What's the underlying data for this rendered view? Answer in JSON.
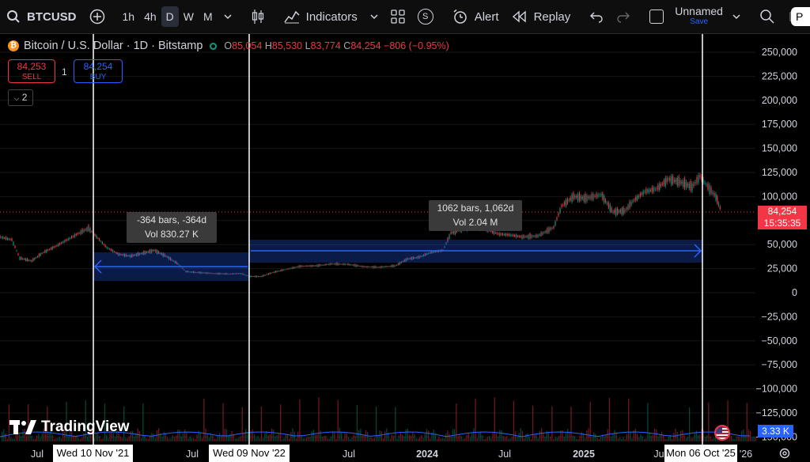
{
  "toolbar": {
    "symbol": "BTCUSD",
    "resolutions": [
      "1h",
      "4h",
      "D",
      "W",
      "M"
    ],
    "active_resolution": "D",
    "indicators_label": "Indicators",
    "s_label": "S",
    "alert_label": "Alert",
    "replay_label": "Replay",
    "layout_name": "Unnamed",
    "layout_status": "Save",
    "publish_label": "P"
  },
  "legend": {
    "title": "Bitcoin / U.S. Dollar · 1D · Bitstamp",
    "o_key": "O",
    "o_val": "85,054",
    "h_key": "H",
    "h_val": "85,530",
    "l_key": "L",
    "l_val": "83,774",
    "c_key": "C",
    "c_val": "84,254",
    "change": "−806 (−0.95%)"
  },
  "trade": {
    "sell_price": "84,253",
    "sell_label": "SELL",
    "spread": "1",
    "buy_price": "84,254",
    "buy_label": "BUY"
  },
  "indicator_collapse": "2",
  "measure1": {
    "line1": "-364 bars, -364d",
    "line2": "Vol 830.27 K"
  },
  "measure2": {
    "line1": "1062 bars, 1,062d",
    "line2": "Vol 2.04 M"
  },
  "price_axis": [
    "250,000",
    "225,000",
    "200,000",
    "175,000",
    "150,000",
    "125,000",
    "100,000",
    "75,000",
    "50,000",
    "25,000",
    "0",
    "−25,000",
    "−50,000",
    "−75,000",
    "−100,000",
    "−125,000",
    "−150,000"
  ],
  "last_price": {
    "price": "84,254",
    "countdown": "15:35:35"
  },
  "volume_label": "3.33 K",
  "time_axis": [
    "Jul",
    "Jul",
    "Jul",
    "2024",
    "Jul",
    "2025",
    "Ju",
    "'26"
  ],
  "date_labels": [
    "Wed 10 Nov '21",
    "Wed 09 Nov '22",
    "Mon 06 Oct '25"
  ],
  "logo_text": "TradingView",
  "colors": {
    "up": "#089981",
    "down": "#f23645",
    "measure": "#2962ff",
    "bg": "#000000"
  }
}
